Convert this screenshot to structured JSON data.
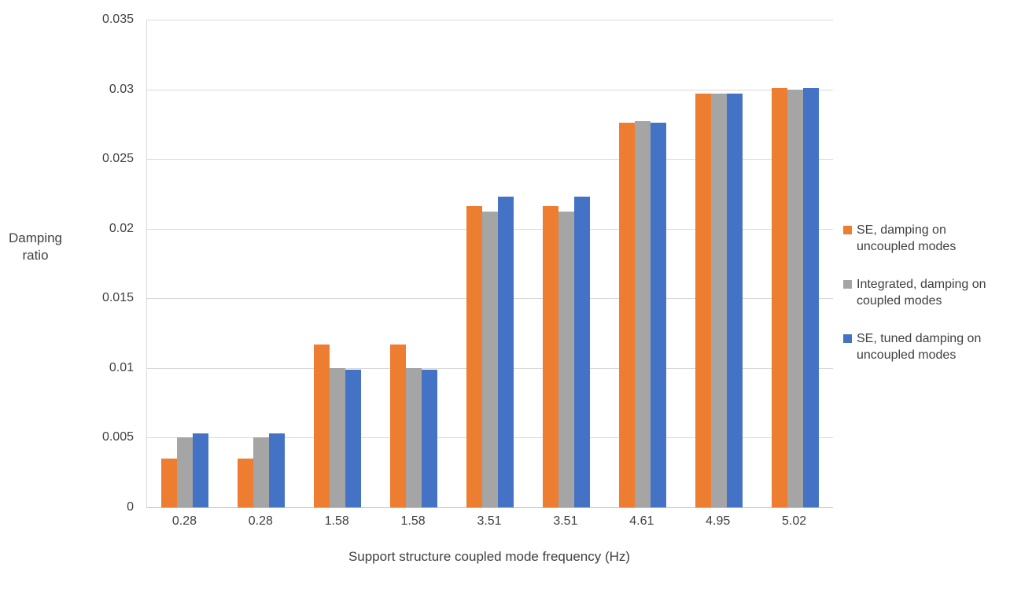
{
  "chart_data": {
    "type": "bar",
    "xlabel": "Support structure coupled mode frequency (Hz)",
    "ylabel": "Damping ratio",
    "categories": [
      "0.28",
      "0.28",
      "1.58",
      "1.58",
      "3.51",
      "3.51",
      "4.61",
      "4.95",
      "5.02"
    ],
    "series": [
      {
        "name": "SE, damping on uncoupled modes",
        "color": "#ED7D31",
        "values": [
          0.0035,
          0.0035,
          0.0117,
          0.0117,
          0.0216,
          0.0216,
          0.0276,
          0.0297,
          0.0301
        ]
      },
      {
        "name": "Integrated, damping on coupled modes",
        "color": "#A5A5A5",
        "values": [
          0.005,
          0.005,
          0.01,
          0.01,
          0.0212,
          0.0212,
          0.0277,
          0.0297,
          0.03
        ]
      },
      {
        "name": "SE, tuned damping on uncoupled modes",
        "color": "#4472C4",
        "values": [
          0.0053,
          0.0053,
          0.0099,
          0.0099,
          0.0223,
          0.0223,
          0.0276,
          0.0297,
          0.0301
        ]
      }
    ],
    "ylim": [
      0,
      0.035
    ],
    "yticks": [
      "0",
      "0.005",
      "0.01",
      "0.015",
      "0.02",
      "0.025",
      "0.03",
      "0.035"
    ],
    "grid": "horizontal",
    "legend_position": "right",
    "colors": {
      "axis_text": "#404040",
      "gridline": "#D9D9D9",
      "axis_line": "#BFBFBF"
    }
  }
}
